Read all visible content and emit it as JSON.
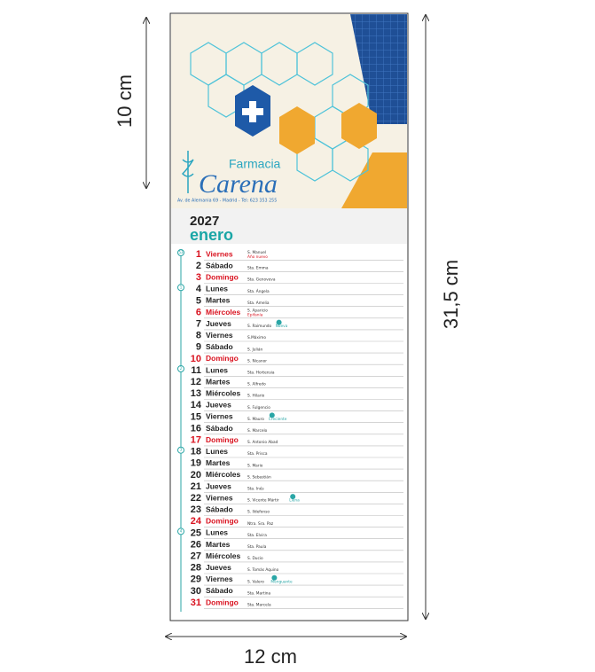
{
  "dimensions": {
    "height": "10 cm",
    "total_height": "31,5 cm",
    "width": "12 cm"
  },
  "pharmacy": {
    "name_top": "Farmacia",
    "name_main": "Carena",
    "address": "Av. de Alemania 69 - Madrid - Tel: 623 353 255"
  },
  "calendar": {
    "year": "2027",
    "month": "enero",
    "weeks": [
      {
        "day": 0,
        "label": "53"
      },
      {
        "day": 3,
        "label": "1"
      },
      {
        "day": 10,
        "label": "2"
      },
      {
        "day": 17,
        "label": "3"
      },
      {
        "day": 24,
        "label": "4"
      }
    ],
    "days": [
      {
        "number": "1",
        "weekday": "Viernes",
        "saint": "S. Manuel",
        "note": "Año nuevo",
        "red": true
      },
      {
        "number": "2",
        "weekday": "Sábado",
        "saint": "Sta. Emma"
      },
      {
        "number": "3",
        "weekday": "Domingo",
        "saint": "Sta. Genoveva",
        "red": true
      },
      {
        "number": "4",
        "weekday": "Lunes",
        "saint": "Sta. Ángela"
      },
      {
        "number": "5",
        "weekday": "Martes",
        "saint": "Sta. Amelia"
      },
      {
        "number": "6",
        "weekday": "Miércoles",
        "saint": "S. Aparicio",
        "note": "Epifanía",
        "red": true
      },
      {
        "number": "7",
        "weekday": "Jueves",
        "saint": "S. Raimundo",
        "moon": "Nueva"
      },
      {
        "number": "8",
        "weekday": "Viernes",
        "saint": "S.Máximo"
      },
      {
        "number": "9",
        "weekday": "Sábado",
        "saint": "S. Julián"
      },
      {
        "number": "10",
        "weekday": "Domingo",
        "saint": "S. Nicanor",
        "red": true
      },
      {
        "number": "11",
        "weekday": "Lunes",
        "saint": "Sta. Hortensia"
      },
      {
        "number": "12",
        "weekday": "Martes",
        "saint": "S. Alfredo"
      },
      {
        "number": "13",
        "weekday": "Miércoles",
        "saint": "S. Hilario"
      },
      {
        "number": "14",
        "weekday": "Jueves",
        "saint": "S. Fulgencio"
      },
      {
        "number": "15",
        "weekday": "Viernes",
        "saint": "S. Mauro",
        "moon": "Creciente"
      },
      {
        "number": "16",
        "weekday": "Sábado",
        "saint": "S. Marcelo"
      },
      {
        "number": "17",
        "weekday": "Domingo",
        "saint": "S. Antonio Abad",
        "red": true
      },
      {
        "number": "18",
        "weekday": "Lunes",
        "saint": "Sta. Prisca"
      },
      {
        "number": "19",
        "weekday": "Martes",
        "saint": "S. Mario"
      },
      {
        "number": "20",
        "weekday": "Miércoles",
        "saint": "S. Sebastián"
      },
      {
        "number": "21",
        "weekday": "Jueves",
        "saint": "Sta. Inés"
      },
      {
        "number": "22",
        "weekday": "Viernes",
        "saint": "S. Vicente Mártir",
        "moon": "Llena"
      },
      {
        "number": "23",
        "weekday": "Sábado",
        "saint": "S. Ildefonso"
      },
      {
        "number": "24",
        "weekday": "Domingo",
        "saint": "Ntra. Sra. Paz",
        "red": true
      },
      {
        "number": "25",
        "weekday": "Lunes",
        "saint": "Sta. Elvira"
      },
      {
        "number": "26",
        "weekday": "Martes",
        "saint": "Sta. Paula"
      },
      {
        "number": "27",
        "weekday": "Miércoles",
        "saint": "S. Ducio"
      },
      {
        "number": "28",
        "weekday": "Jueves",
        "saint": "S. Tomás Aquino"
      },
      {
        "number": "29",
        "weekday": "Viernes",
        "saint": "S. Valero",
        "moon": "Menguante"
      },
      {
        "number": "30",
        "weekday": "Sábado",
        "saint": "Sta. Martina"
      },
      {
        "number": "31",
        "weekday": "Domingo",
        "saint": "Sta. Marcela",
        "red": true
      }
    ]
  }
}
